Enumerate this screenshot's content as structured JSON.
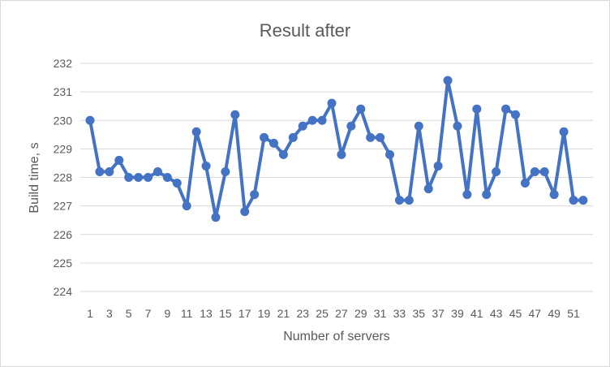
{
  "chart_data": {
    "type": "line",
    "title": "Result after",
    "xlabel": "Number of servers",
    "ylabel": "Build time, s",
    "ylim": [
      224,
      232
    ],
    "yticks": [
      224,
      225,
      226,
      227,
      228,
      229,
      230,
      231,
      232
    ],
    "x": [
      1,
      2,
      3,
      4,
      5,
      6,
      7,
      8,
      9,
      10,
      11,
      12,
      13,
      14,
      15,
      16,
      17,
      18,
      19,
      20,
      21,
      22,
      23,
      24,
      25,
      26,
      27,
      28,
      29,
      30,
      31,
      32,
      33,
      34,
      35,
      36,
      37,
      38,
      39,
      40,
      41,
      42,
      43,
      44,
      45,
      46,
      47,
      48,
      49,
      50,
      51,
      52
    ],
    "xtick_labels": [
      "1",
      "3",
      "5",
      "7",
      "9",
      "11",
      "13",
      "15",
      "17",
      "19",
      "21",
      "23",
      "25",
      "27",
      "29",
      "31",
      "33",
      "35",
      "37",
      "39",
      "41",
      "43",
      "45",
      "47",
      "49",
      "51"
    ],
    "grid": true,
    "legend": "none",
    "series": [
      {
        "color": "#4472c4",
        "values": [
          230.0,
          228.2,
          228.2,
          228.6,
          228.0,
          228.0,
          228.0,
          228.2,
          228.0,
          227.8,
          227.0,
          229.6,
          228.4,
          226.6,
          228.2,
          230.2,
          226.8,
          227.4,
          229.4,
          229.2,
          228.8,
          229.4,
          229.8,
          230.0,
          230.0,
          230.6,
          228.8,
          229.8,
          230.4,
          229.4,
          229.4,
          228.8,
          227.2,
          227.2,
          229.8,
          227.6,
          228.4,
          231.4,
          229.8,
          227.4,
          230.4,
          227.4,
          228.2,
          230.4,
          230.2,
          227.8,
          228.2,
          228.2,
          227.4,
          229.6,
          227.2,
          227.2
        ]
      }
    ]
  }
}
